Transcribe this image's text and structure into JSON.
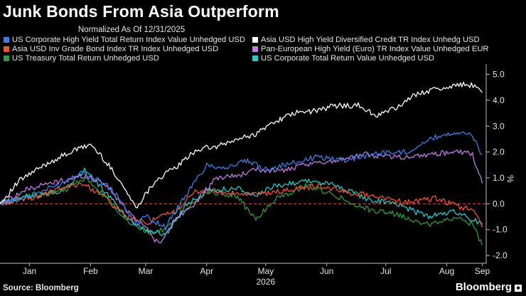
{
  "title": "Junk Bonds From Asia Outperform",
  "subtitle": "Normalized As Of 12/31/2025",
  "footer": {
    "source": "Source: Bloomberg",
    "brand": "Bloomberg"
  },
  "chart_data": {
    "type": "line",
    "ylabel": "%",
    "ylim": [
      -2.3,
      5.4
    ],
    "yticks": [
      5.0,
      4.0,
      3.0,
      2.0,
      1.0,
      0.0,
      -1.0,
      -2.0
    ],
    "ytick_labels": [
      "5.0",
      "4.0",
      "3.0",
      "2.0",
      "1.0",
      "0.0",
      "-1.0",
      "-2.0"
    ],
    "x_range": [
      "2025-12-31",
      "2026-09-04"
    ],
    "x_tick_labels": [
      "Jan",
      "Feb",
      "Mar",
      "Apr",
      "May",
      "Jun",
      "Jul",
      "Aug",
      "Sep"
    ],
    "x_tick_dates": [
      "2026-01-15",
      "2026-02-15",
      "2026-03-15",
      "2026-04-15",
      "2026-05-15",
      "2026-06-15",
      "2026-07-15",
      "2026-08-15",
      "2026-09-02"
    ],
    "x_year_label": "2026",
    "zero_line": true,
    "series": [
      {
        "name": "US Corporate High Yield Total Return Index Value Unhedged USD",
        "color": "#3c7fe6",
        "points": [
          [
            "2025-12-31",
            0
          ],
          [
            "2026-01-15",
            0.3
          ],
          [
            "2026-02-01",
            0.8
          ],
          [
            "2026-02-10",
            1.25
          ],
          [
            "2026-02-20",
            0.9
          ],
          [
            "2026-03-01",
            0.3
          ],
          [
            "2026-03-09",
            -0.8
          ],
          [
            "2026-03-15",
            -0.5
          ],
          [
            "2026-03-25",
            -0.9
          ],
          [
            "2026-04-05",
            0.4
          ],
          [
            "2026-04-15",
            1.5
          ],
          [
            "2026-04-25",
            1.4
          ],
          [
            "2026-05-05",
            1.65
          ],
          [
            "2026-05-15",
            1.35
          ],
          [
            "2026-05-25",
            1.5
          ],
          [
            "2026-06-10",
            1.8
          ],
          [
            "2026-06-25",
            1.7
          ],
          [
            "2026-07-10",
            1.95
          ],
          [
            "2026-07-25",
            2.0
          ],
          [
            "2026-08-10",
            2.6
          ],
          [
            "2026-08-22",
            2.8
          ],
          [
            "2026-08-28",
            2.6
          ],
          [
            "2026-09-02",
            1.9
          ]
        ]
      },
      {
        "name": "Asia USD High Yield Diversified Credit TR Index Unhedg USD",
        "color": "#ffffff",
        "points": [
          [
            "2025-12-31",
            0
          ],
          [
            "2026-01-10",
            0.9
          ],
          [
            "2026-01-25",
            1.6
          ],
          [
            "2026-02-05",
            2.0
          ],
          [
            "2026-02-15",
            2.3
          ],
          [
            "2026-02-22",
            1.7
          ],
          [
            "2026-03-01",
            1.0
          ],
          [
            "2026-03-10",
            -0.15
          ],
          [
            "2026-03-20",
            0.9
          ],
          [
            "2026-04-01",
            1.5
          ],
          [
            "2026-04-10",
            2.1
          ],
          [
            "2026-04-20",
            2.2
          ],
          [
            "2026-05-01",
            2.5
          ],
          [
            "2026-05-10",
            2.7
          ],
          [
            "2026-05-20",
            3.2
          ],
          [
            "2026-05-30",
            3.5
          ],
          [
            "2026-06-10",
            3.6
          ],
          [
            "2026-06-20",
            3.8
          ],
          [
            "2026-07-01",
            3.8
          ],
          [
            "2026-07-10",
            3.4
          ],
          [
            "2026-07-20",
            3.7
          ],
          [
            "2026-08-01",
            4.3
          ],
          [
            "2026-08-15",
            4.5
          ],
          [
            "2026-08-25",
            4.65
          ],
          [
            "2026-08-30",
            4.5
          ],
          [
            "2026-09-02",
            4.3
          ]
        ]
      },
      {
        "name": "Asia USD Inv Grade Bond Index TR Index Unhedged USD",
        "color": "#f0562f",
        "points": [
          [
            "2025-12-31",
            0
          ],
          [
            "2026-01-20",
            0.3
          ],
          [
            "2026-02-10",
            0.8
          ],
          [
            "2026-02-20",
            0.4
          ],
          [
            "2026-03-05",
            -0.5
          ],
          [
            "2026-03-15",
            -0.75
          ],
          [
            "2026-03-30",
            -0.3
          ],
          [
            "2026-04-10",
            0.5
          ],
          [
            "2026-04-25",
            0.4
          ],
          [
            "2026-05-10",
            0.35
          ],
          [
            "2026-05-25",
            0.5
          ],
          [
            "2026-06-10",
            0.7
          ],
          [
            "2026-06-25",
            0.45
          ],
          [
            "2026-07-10",
            0.3
          ],
          [
            "2026-07-25",
            0.05
          ],
          [
            "2026-08-10",
            0.2
          ],
          [
            "2026-08-20",
            -0.1
          ],
          [
            "2026-08-28",
            -0.2
          ],
          [
            "2026-09-02",
            -0.9
          ]
        ]
      },
      {
        "name": "Pan-European High Yield (Euro) TR Index Value Unhedged EUR",
        "color": "#c37be6",
        "points": [
          [
            "2025-12-31",
            0
          ],
          [
            "2026-01-15",
            0.6
          ],
          [
            "2026-02-01",
            0.9
          ],
          [
            "2026-02-12",
            1.1
          ],
          [
            "2026-02-22",
            0.8
          ],
          [
            "2026-03-05",
            -0.2
          ],
          [
            "2026-03-15",
            -0.9
          ],
          [
            "2026-03-22",
            -1.6
          ],
          [
            "2026-03-30",
            -0.6
          ],
          [
            "2026-04-10",
            0.1
          ],
          [
            "2026-04-20",
            1.0
          ],
          [
            "2026-05-01",
            1.1
          ],
          [
            "2026-05-10",
            1.3
          ],
          [
            "2026-05-25",
            1.3
          ],
          [
            "2026-06-05",
            1.5
          ],
          [
            "2026-06-20",
            1.7
          ],
          [
            "2026-07-05",
            1.9
          ],
          [
            "2026-07-25",
            1.8
          ],
          [
            "2026-08-10",
            1.95
          ],
          [
            "2026-08-22",
            2.0
          ],
          [
            "2026-08-28",
            1.9
          ],
          [
            "2026-09-02",
            0.8
          ]
        ]
      },
      {
        "name": "US Corporate Total Return Value Unhedged USD",
        "color": "#29c9c9",
        "points": [
          [
            "2025-12-31",
            0
          ],
          [
            "2026-01-15",
            0.3
          ],
          [
            "2026-02-01",
            0.5
          ],
          [
            "2026-02-12",
            1.3
          ],
          [
            "2026-02-22",
            0.5
          ],
          [
            "2026-03-05",
            -0.5
          ],
          [
            "2026-03-15",
            -1.0
          ],
          [
            "2026-03-25",
            -1.2
          ],
          [
            "2026-04-05",
            0.0
          ],
          [
            "2026-04-15",
            0.5
          ],
          [
            "2026-04-30",
            0.6
          ],
          [
            "2026-05-10",
            0.3
          ],
          [
            "2026-05-20",
            0.7
          ],
          [
            "2026-06-05",
            0.9
          ],
          [
            "2026-06-20",
            0.7
          ],
          [
            "2026-07-05",
            0.2
          ],
          [
            "2026-07-20",
            0.0
          ],
          [
            "2026-08-05",
            -0.5
          ],
          [
            "2026-08-20",
            -0.3
          ],
          [
            "2026-08-28",
            -0.6
          ],
          [
            "2026-09-02",
            -0.8
          ]
        ]
      },
      {
        "name": "US Treasury Total Return Unhedged USD",
        "color": "#2f9c3c",
        "points": [
          [
            "2025-12-31",
            0
          ],
          [
            "2026-01-15",
            0.3
          ],
          [
            "2026-02-01",
            0.5
          ],
          [
            "2026-02-12",
            1.0
          ],
          [
            "2026-02-22",
            0.3
          ],
          [
            "2026-03-05",
            -0.6
          ],
          [
            "2026-03-15",
            -1.1
          ],
          [
            "2026-03-25",
            -1.0
          ],
          [
            "2026-04-05",
            -0.2
          ],
          [
            "2026-04-15",
            0.5
          ],
          [
            "2026-04-30",
            0.3
          ],
          [
            "2026-05-10",
            -0.6
          ],
          [
            "2026-05-20",
            0.2
          ],
          [
            "2026-06-05",
            0.7
          ],
          [
            "2026-06-20",
            0.3
          ],
          [
            "2026-07-05",
            -0.2
          ],
          [
            "2026-07-20",
            -0.4
          ],
          [
            "2026-08-05",
            -0.8
          ],
          [
            "2026-08-20",
            -0.5
          ],
          [
            "2026-08-28",
            -0.8
          ],
          [
            "2026-09-02",
            -1.6
          ]
        ]
      }
    ]
  }
}
